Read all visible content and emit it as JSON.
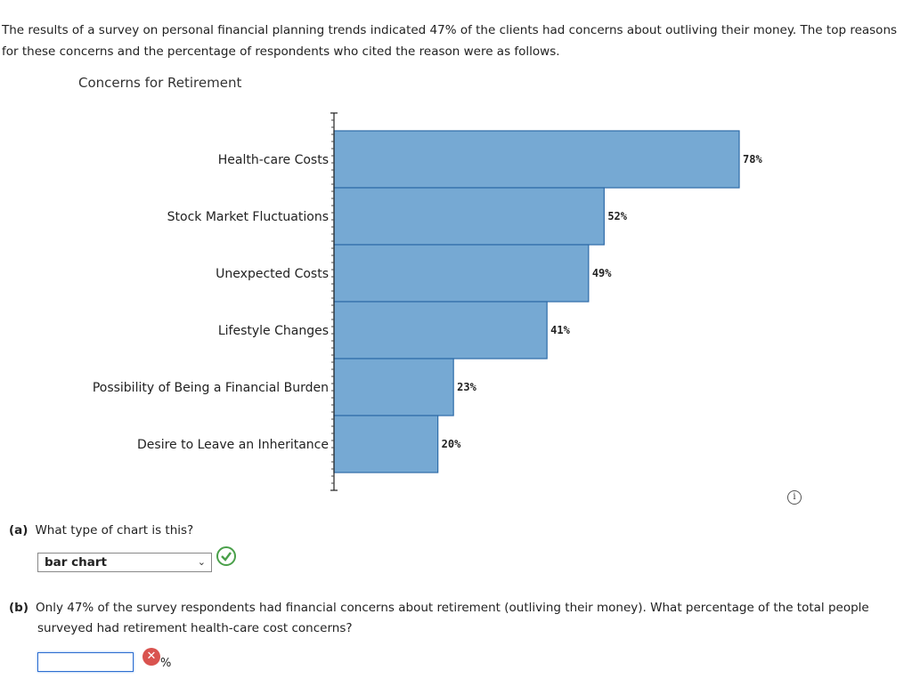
{
  "intro": "The results of a survey on personal financial planning trends indicated 47% of the clients had concerns about outliving their money. The top reasons for these concerns and the percentage of respondents who cited the reason were as follows.",
  "chart_data": {
    "type": "bar",
    "orientation": "horizontal",
    "title": "Concerns for Retirement",
    "categories": [
      "Health-care Costs",
      "Stock Market Fluctuations",
      "Unexpected Costs",
      "Lifestyle Changes",
      "Possibility of Being a Financial Burden",
      "Desire to Leave an Inheritance"
    ],
    "values": [
      78,
      52,
      49,
      41,
      23,
      20
    ],
    "value_labels": [
      "78%",
      "52%",
      "49%",
      "41%",
      "23%",
      "20%"
    ],
    "xlim": [
      0,
      78
    ],
    "grid": false,
    "bar_color": "#76a9d3",
    "bar_border": "#2e6ba8"
  },
  "question_a": {
    "label": "(a)",
    "text": "What type of chart is this?",
    "selected": "bar chart"
  },
  "question_b": {
    "label": "(b)",
    "text_line1": "Only 47% of the survey respondents had financial concerns about retirement (outliving their money). What percentage of the total people",
    "text_line2": "surveyed had retirement health-care cost concerns?",
    "value": "",
    "unit": "%"
  },
  "icons": {
    "info": "info-icon",
    "correct": "check-icon",
    "incorrect": "x-icon"
  }
}
